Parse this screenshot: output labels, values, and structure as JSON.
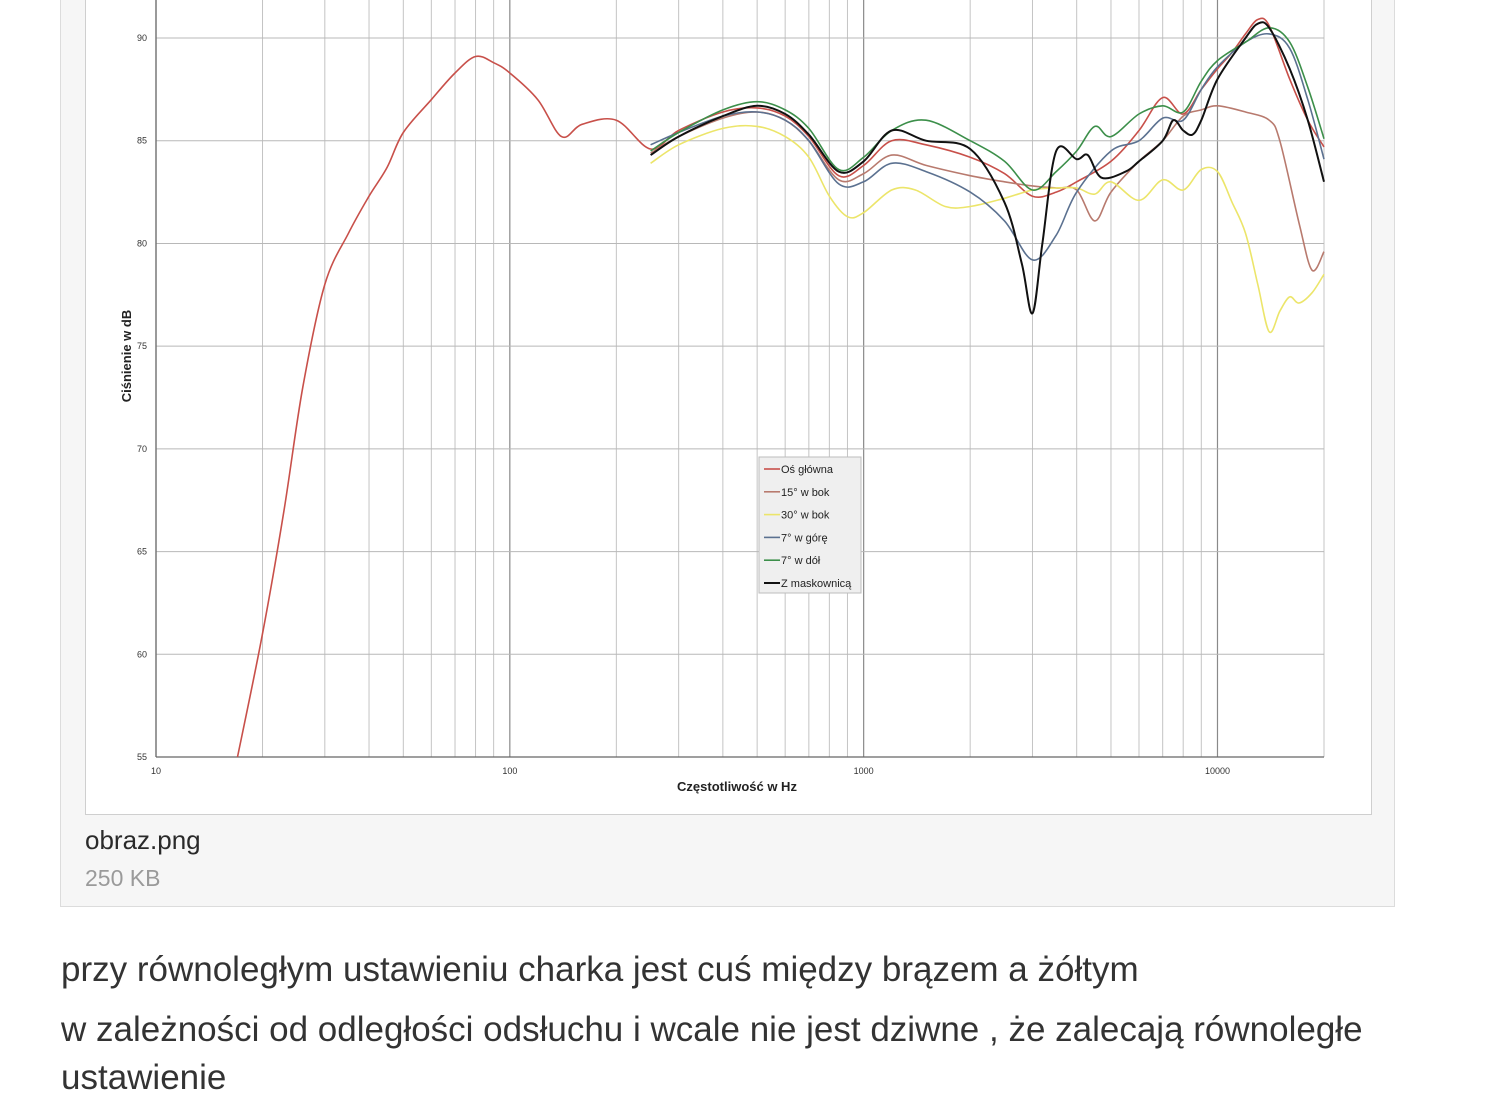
{
  "attachment": {
    "file_name": "obraz.png",
    "file_size": "250 KB"
  },
  "messages": [
    "przy równoległym ustawieniu charka jest cuś między brązem a żółtym",
    "w zależności od odległości odsłuchu i wcale nie jest dziwne , że zalecają równoległe ustawienie"
  ],
  "chart_data": {
    "type": "line",
    "xlabel": "Częstotliwość w Hz",
    "ylabel": "Ciśnienie w dB",
    "x_scale": "log",
    "xlim": [
      10,
      20000
    ],
    "ylim": [
      55,
      92
    ],
    "x_ticks": [
      10,
      100,
      1000,
      10000
    ],
    "x_tick_labels": [
      "10",
      "100",
      "1000",
      "10000"
    ],
    "y_ticks": [
      55,
      60,
      65,
      70,
      75,
      80,
      85,
      90
    ],
    "y_tick_labels": [
      "55",
      "60",
      "65",
      "70",
      "75",
      "80",
      "85",
      "90"
    ],
    "grid": true,
    "legend_position": "center",
    "series": [
      {
        "name": "Oś główna",
        "color": "#c8504a",
        "points": [
          [
            17,
            55
          ],
          [
            20,
            61
          ],
          [
            23,
            67
          ],
          [
            26,
            73
          ],
          [
            30,
            78
          ],
          [
            35,
            80.5
          ],
          [
            40,
            82.3
          ],
          [
            45,
            83.7
          ],
          [
            50,
            85.4
          ],
          [
            60,
            87
          ],
          [
            70,
            88.3
          ],
          [
            80,
            89.1
          ],
          [
            90,
            88.8
          ],
          [
            100,
            88.3
          ],
          [
            120,
            87
          ],
          [
            140,
            85.2
          ],
          [
            160,
            85.8
          ],
          [
            200,
            86
          ],
          [
            250,
            84.6
          ],
          [
            300,
            85.5
          ],
          [
            400,
            86.4
          ],
          [
            500,
            86.6
          ],
          [
            600,
            86.2
          ],
          [
            700,
            85.2
          ],
          [
            850,
            83.3
          ],
          [
            1000,
            83.8
          ],
          [
            1200,
            85
          ],
          [
            1500,
            84.8
          ],
          [
            2000,
            84.2
          ],
          [
            2500,
            83.4
          ],
          [
            3000,
            82.3
          ],
          [
            3500,
            82.5
          ],
          [
            4000,
            83
          ],
          [
            5000,
            84
          ],
          [
            6000,
            85.5
          ],
          [
            7000,
            87.1
          ],
          [
            8000,
            86.3
          ],
          [
            9000,
            87.5
          ],
          [
            10000,
            88.5
          ],
          [
            11000,
            89.3
          ],
          [
            12000,
            90.2
          ],
          [
            13000,
            90.9
          ],
          [
            14000,
            90.6
          ],
          [
            16000,
            88
          ],
          [
            18000,
            86
          ],
          [
            20000,
            84.7
          ]
        ]
      },
      {
        "name": "15° w bok",
        "color": "#b87a6e",
        "points": [
          [
            250,
            84.4
          ],
          [
            300,
            85.2
          ],
          [
            400,
            86.1
          ],
          [
            500,
            86.4
          ],
          [
            600,
            86
          ],
          [
            700,
            85
          ],
          [
            850,
            83.1
          ],
          [
            1000,
            83.4
          ],
          [
            1200,
            84.3
          ],
          [
            1500,
            83.8
          ],
          [
            2000,
            83.3
          ],
          [
            2500,
            83
          ],
          [
            3000,
            82.8
          ],
          [
            3500,
            82.7
          ],
          [
            4000,
            82.6
          ],
          [
            4500,
            81.1
          ],
          [
            5000,
            82.5
          ],
          [
            6000,
            84
          ],
          [
            7000,
            85
          ],
          [
            8000,
            86.2
          ],
          [
            9000,
            86.5
          ],
          [
            10000,
            86.7
          ],
          [
            12000,
            86.4
          ],
          [
            14000,
            86
          ],
          [
            15000,
            85
          ],
          [
            17000,
            81
          ],
          [
            18500,
            78.7
          ],
          [
            20000,
            79.6
          ]
        ]
      },
      {
        "name": "30° w bok",
        "color": "#ece56a",
        "points": [
          [
            250,
            83.9
          ],
          [
            300,
            84.8
          ],
          [
            400,
            85.6
          ],
          [
            500,
            85.7
          ],
          [
            600,
            85.2
          ],
          [
            700,
            84.2
          ],
          [
            800,
            82.3
          ],
          [
            900,
            81.3
          ],
          [
            1000,
            81.5
          ],
          [
            1200,
            82.6
          ],
          [
            1400,
            82.6
          ],
          [
            1700,
            81.8
          ],
          [
            2000,
            81.8
          ],
          [
            2500,
            82.2
          ],
          [
            3000,
            82.6
          ],
          [
            3500,
            82.7
          ],
          [
            4000,
            82.7
          ],
          [
            4500,
            82.4
          ],
          [
            5000,
            83
          ],
          [
            6000,
            82.1
          ],
          [
            7000,
            83.1
          ],
          [
            8000,
            82.6
          ],
          [
            9000,
            83.6
          ],
          [
            10000,
            83.5
          ],
          [
            11000,
            82
          ],
          [
            12000,
            80.5
          ],
          [
            13000,
            78
          ],
          [
            14000,
            75.7
          ],
          [
            15000,
            76.7
          ],
          [
            16000,
            77.4
          ],
          [
            17000,
            77.1
          ],
          [
            18500,
            77.6
          ],
          [
            20000,
            78.5
          ]
        ]
      },
      {
        "name": "7° w górę",
        "color": "#5b7190",
        "points": [
          [
            250,
            84.8
          ],
          [
            300,
            85.4
          ],
          [
            400,
            86.2
          ],
          [
            500,
            86.4
          ],
          [
            600,
            86
          ],
          [
            700,
            85
          ],
          [
            850,
            82.9
          ],
          [
            1000,
            83
          ],
          [
            1200,
            83.9
          ],
          [
            1500,
            83.5
          ],
          [
            2000,
            82.5
          ],
          [
            2500,
            81.1
          ],
          [
            3000,
            79.2
          ],
          [
            3500,
            80.4
          ],
          [
            4000,
            82.5
          ],
          [
            5000,
            84.5
          ],
          [
            6000,
            85
          ],
          [
            7000,
            86.1
          ],
          [
            8000,
            86
          ],
          [
            9000,
            87.5
          ],
          [
            10000,
            88.6
          ],
          [
            12000,
            89.8
          ],
          [
            14000,
            90.2
          ],
          [
            16000,
            89.5
          ],
          [
            18000,
            87
          ],
          [
            20000,
            84.1
          ]
        ]
      },
      {
        "name": "7° w dół",
        "color": "#3c8f4a",
        "points": [
          [
            250,
            84.5
          ],
          [
            300,
            85.4
          ],
          [
            400,
            86.5
          ],
          [
            500,
            86.9
          ],
          [
            600,
            86.5
          ],
          [
            700,
            85.6
          ],
          [
            850,
            83.6
          ],
          [
            1000,
            84.2
          ],
          [
            1200,
            85.5
          ],
          [
            1500,
            86
          ],
          [
            2000,
            85
          ],
          [
            2500,
            84
          ],
          [
            3000,
            82.6
          ],
          [
            3500,
            83.5
          ],
          [
            4000,
            84.5
          ],
          [
            4500,
            85.7
          ],
          [
            5000,
            85.2
          ],
          [
            6000,
            86.3
          ],
          [
            7000,
            86.7
          ],
          [
            8000,
            86.4
          ],
          [
            9000,
            87.9
          ],
          [
            10000,
            88.9
          ],
          [
            12000,
            89.8
          ],
          [
            14000,
            90.5
          ],
          [
            16000,
            89.8
          ],
          [
            18000,
            87.6
          ],
          [
            20000,
            85.1
          ]
        ]
      },
      {
        "name": "Z maskownicą",
        "color": "#111111",
        "points": [
          [
            250,
            84.3
          ],
          [
            300,
            85.2
          ],
          [
            400,
            86.2
          ],
          [
            500,
            86.7
          ],
          [
            600,
            86.3
          ],
          [
            700,
            85.3
          ],
          [
            850,
            83.5
          ],
          [
            1000,
            84
          ],
          [
            1200,
            85.5
          ],
          [
            1500,
            85
          ],
          [
            2000,
            84.6
          ],
          [
            2500,
            82
          ],
          [
            2800,
            79
          ],
          [
            3000,
            76.6
          ],
          [
            3200,
            80
          ],
          [
            3500,
            84.5
          ],
          [
            4000,
            84.1
          ],
          [
            4300,
            84.3
          ],
          [
            4700,
            83.2
          ],
          [
            5500,
            83.5
          ],
          [
            6000,
            84
          ],
          [
            7000,
            85
          ],
          [
            7500,
            86
          ],
          [
            8000,
            85.5
          ],
          [
            8500,
            85.3
          ],
          [
            9000,
            86
          ],
          [
            10000,
            88
          ],
          [
            12000,
            90
          ],
          [
            13000,
            90.7
          ],
          [
            14000,
            90.5
          ],
          [
            16000,
            88.5
          ],
          [
            18000,
            86
          ],
          [
            20000,
            83
          ]
        ]
      }
    ]
  }
}
